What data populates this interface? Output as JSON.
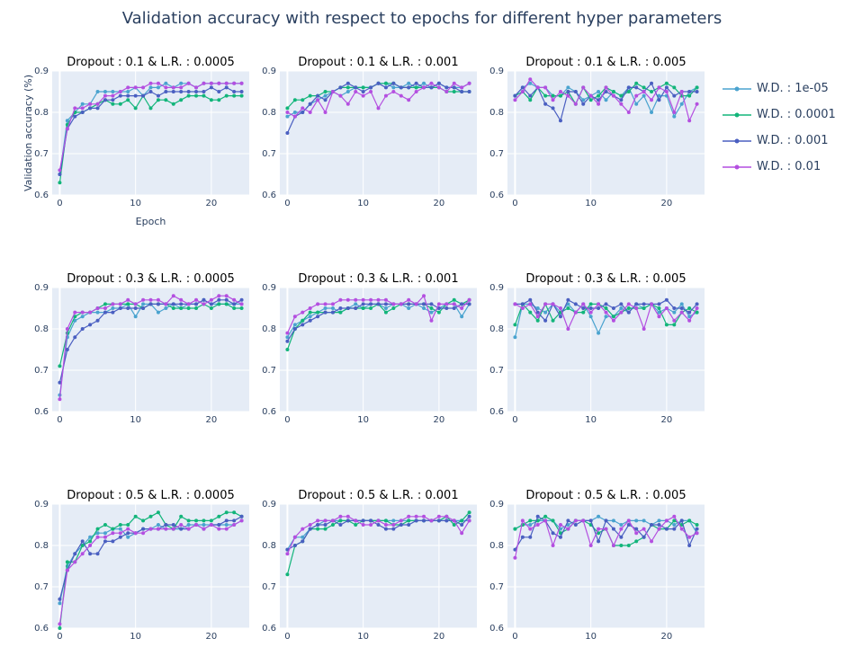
{
  "title": "Validation accuracy with respect to epochs for different hyper parameters",
  "colors": {
    "plot_bg": "#e5ecf6",
    "grid": "#ffffff",
    "text": "#2a3f5f"
  },
  "chart_data": {
    "type": "line",
    "x_axis_label": "Epoch",
    "y_axis_label": "Validation accuracy (%)",
    "xlim": [
      -1,
      25
    ],
    "ylim": [
      0.6,
      0.9
    ],
    "x_ticks": [
      0,
      10,
      20
    ],
    "y_ticks": [
      0.6,
      0.7,
      0.8,
      0.9
    ],
    "x": [
      0,
      1,
      2,
      3,
      4,
      5,
      6,
      7,
      8,
      9,
      10,
      11,
      12,
      13,
      14,
      15,
      16,
      17,
      18,
      19,
      20,
      21,
      22,
      23,
      24
    ],
    "legend": [
      {
        "name": "W.D. : 1e-05",
        "color": "#4aa3cf"
      },
      {
        "name": "W.D. : 0.0001",
        "color": "#12b57a"
      },
      {
        "name": "W.D. : 0.001",
        "color": "#4a5fc1"
      },
      {
        "name": "W.D. : 0.01",
        "color": "#b44fe0"
      }
    ],
    "subplots": [
      {
        "title": "Dropout : 0.1 & L.R. : 0.0005",
        "series": [
          [
            0.65,
            0.78,
            0.8,
            0.82,
            0.82,
            0.85,
            0.85,
            0.85,
            0.85,
            0.85,
            0.86,
            0.84,
            0.86,
            0.86,
            0.87,
            0.86,
            0.87,
            0.87,
            0.86,
            0.87,
            0.87,
            0.87,
            0.87,
            0.87,
            0.87
          ],
          [
            0.63,
            0.77,
            0.8,
            0.8,
            0.81,
            0.82,
            0.83,
            0.82,
            0.82,
            0.83,
            0.81,
            0.84,
            0.81,
            0.83,
            0.83,
            0.82,
            0.83,
            0.84,
            0.84,
            0.84,
            0.83,
            0.83,
            0.84,
            0.84,
            0.84
          ],
          [
            0.65,
            0.76,
            0.79,
            0.8,
            0.81,
            0.81,
            0.83,
            0.83,
            0.84,
            0.84,
            0.84,
            0.84,
            0.85,
            0.84,
            0.85,
            0.85,
            0.85,
            0.85,
            0.85,
            0.85,
            0.86,
            0.85,
            0.86,
            0.85,
            0.85
          ],
          [
            0.66,
            0.76,
            0.81,
            0.81,
            0.82,
            0.82,
            0.84,
            0.84,
            0.85,
            0.86,
            0.86,
            0.86,
            0.87,
            0.87,
            0.86,
            0.86,
            0.86,
            0.87,
            0.86,
            0.87,
            0.87,
            0.87,
            0.87,
            0.87,
            0.87
          ]
        ]
      },
      {
        "title": "Dropout : 0.1 & L.R. : 0.001",
        "series": [
          [
            0.79,
            0.8,
            0.8,
            0.82,
            0.83,
            0.84,
            0.85,
            0.84,
            0.85,
            0.86,
            0.86,
            0.86,
            0.87,
            0.87,
            0.86,
            0.86,
            0.87,
            0.86,
            0.87,
            0.86,
            0.87,
            0.86,
            0.86,
            0.86,
            0.87
          ],
          [
            0.81,
            0.83,
            0.83,
            0.84,
            0.84,
            0.85,
            0.85,
            0.86,
            0.86,
            0.86,
            0.86,
            0.86,
            0.87,
            0.87,
            0.87,
            0.86,
            0.86,
            0.86,
            0.86,
            0.86,
            0.86,
            0.85,
            0.85,
            0.85,
            0.85
          ],
          [
            0.75,
            0.79,
            0.8,
            0.82,
            0.84,
            0.83,
            0.85,
            0.86,
            0.87,
            0.86,
            0.85,
            0.86,
            0.87,
            0.86,
            0.87,
            0.86,
            0.86,
            0.87,
            0.86,
            0.86,
            0.87,
            0.86,
            0.86,
            0.85,
            0.85
          ],
          [
            0.8,
            0.79,
            0.81,
            0.8,
            0.83,
            0.8,
            0.85,
            0.84,
            0.82,
            0.85,
            0.84,
            0.85,
            0.81,
            0.84,
            0.85,
            0.84,
            0.83,
            0.85,
            0.86,
            0.87,
            0.86,
            0.85,
            0.87,
            0.86,
            0.87
          ]
        ]
      },
      {
        "title": "Dropout : 0.1 & L.R. : 0.005",
        "series": [
          [
            0.84,
            0.86,
            0.87,
            0.86,
            0.86,
            0.84,
            0.84,
            0.86,
            0.85,
            0.83,
            0.84,
            0.85,
            0.83,
            0.85,
            0.84,
            0.86,
            0.82,
            0.84,
            0.8,
            0.84,
            0.84,
            0.79,
            0.82,
            0.85,
            0.86
          ],
          [
            0.84,
            0.85,
            0.83,
            0.86,
            0.84,
            0.84,
            0.84,
            0.85,
            0.82,
            0.86,
            0.83,
            0.84,
            0.86,
            0.85,
            0.84,
            0.85,
            0.87,
            0.86,
            0.85,
            0.86,
            0.87,
            0.86,
            0.84,
            0.84,
            0.86
          ],
          [
            0.84,
            0.86,
            0.84,
            0.86,
            0.82,
            0.81,
            0.78,
            0.85,
            0.85,
            0.82,
            0.84,
            0.83,
            0.85,
            0.84,
            0.83,
            0.86,
            0.86,
            0.85,
            0.87,
            0.83,
            0.86,
            0.84,
            0.85,
            0.85,
            0.85
          ],
          [
            0.83,
            0.85,
            0.88,
            0.86,
            0.86,
            0.83,
            0.85,
            0.84,
            0.82,
            0.86,
            0.84,
            0.82,
            0.86,
            0.84,
            0.82,
            0.8,
            0.84,
            0.85,
            0.83,
            0.86,
            0.85,
            0.8,
            0.85,
            0.78,
            0.82
          ]
        ]
      },
      {
        "title": "Dropout : 0.3 & L.R. : 0.0005",
        "series": [
          [
            0.64,
            0.78,
            0.82,
            0.83,
            0.84,
            0.84,
            0.84,
            0.85,
            0.85,
            0.86,
            0.83,
            0.86,
            0.86,
            0.84,
            0.85,
            0.86,
            0.85,
            0.86,
            0.86,
            0.87,
            0.86,
            0.86,
            0.86,
            0.86,
            0.86
          ],
          [
            0.71,
            0.79,
            0.83,
            0.84,
            0.84,
            0.85,
            0.86,
            0.86,
            0.86,
            0.86,
            0.86,
            0.85,
            0.86,
            0.86,
            0.86,
            0.85,
            0.85,
            0.85,
            0.85,
            0.86,
            0.85,
            0.86,
            0.86,
            0.85,
            0.85
          ],
          [
            0.67,
            0.75,
            0.78,
            0.8,
            0.81,
            0.82,
            0.84,
            0.84,
            0.85,
            0.85,
            0.85,
            0.85,
            0.86,
            0.86,
            0.86,
            0.86,
            0.86,
            0.86,
            0.86,
            0.87,
            0.86,
            0.87,
            0.87,
            0.86,
            0.87
          ],
          [
            0.63,
            0.8,
            0.84,
            0.84,
            0.84,
            0.85,
            0.85,
            0.86,
            0.86,
            0.87,
            0.86,
            0.87,
            0.87,
            0.87,
            0.86,
            0.88,
            0.87,
            0.86,
            0.87,
            0.86,
            0.87,
            0.88,
            0.88,
            0.87,
            0.86
          ]
        ]
      },
      {
        "title": "Dropout : 0.3 & L.R. : 0.001",
        "series": [
          [
            0.78,
            0.81,
            0.82,
            0.83,
            0.84,
            0.85,
            0.85,
            0.84,
            0.85,
            0.86,
            0.85,
            0.86,
            0.86,
            0.85,
            0.86,
            0.86,
            0.85,
            0.86,
            0.85,
            0.84,
            0.85,
            0.86,
            0.86,
            0.83,
            0.86
          ],
          [
            0.75,
            0.8,
            0.82,
            0.84,
            0.84,
            0.84,
            0.84,
            0.84,
            0.85,
            0.85,
            0.85,
            0.85,
            0.86,
            0.84,
            0.85,
            0.86,
            0.86,
            0.86,
            0.86,
            0.85,
            0.84,
            0.86,
            0.87,
            0.86,
            0.87
          ],
          [
            0.77,
            0.8,
            0.81,
            0.82,
            0.83,
            0.84,
            0.84,
            0.85,
            0.85,
            0.85,
            0.86,
            0.86,
            0.86,
            0.86,
            0.86,
            0.86,
            0.86,
            0.86,
            0.86,
            0.86,
            0.85,
            0.85,
            0.85,
            0.86,
            0.86
          ],
          [
            0.79,
            0.83,
            0.84,
            0.85,
            0.86,
            0.86,
            0.86,
            0.87,
            0.87,
            0.87,
            0.87,
            0.87,
            0.87,
            0.87,
            0.86,
            0.86,
            0.87,
            0.86,
            0.88,
            0.82,
            0.86,
            0.86,
            0.86,
            0.85,
            0.87
          ]
        ]
      },
      {
        "title": "Dropout : 0.3 & L.R. : 0.005",
        "series": [
          [
            0.78,
            0.86,
            0.86,
            0.85,
            0.84,
            0.86,
            0.84,
            0.86,
            0.84,
            0.86,
            0.83,
            0.79,
            0.83,
            0.83,
            0.85,
            0.84,
            0.86,
            0.85,
            0.86,
            0.84,
            0.85,
            0.84,
            0.86,
            0.83,
            0.84
          ],
          [
            0.81,
            0.86,
            0.84,
            0.82,
            0.86,
            0.82,
            0.84,
            0.85,
            0.84,
            0.84,
            0.86,
            0.86,
            0.85,
            0.83,
            0.84,
            0.85,
            0.85,
            0.85,
            0.86,
            0.85,
            0.81,
            0.81,
            0.84,
            0.85,
            0.84
          ],
          [
            0.86,
            0.86,
            0.87,
            0.84,
            0.82,
            0.86,
            0.83,
            0.87,
            0.86,
            0.85,
            0.85,
            0.85,
            0.86,
            0.85,
            0.86,
            0.84,
            0.86,
            0.86,
            0.86,
            0.86,
            0.87,
            0.85,
            0.85,
            0.84,
            0.86
          ],
          [
            0.86,
            0.85,
            0.86,
            0.83,
            0.86,
            0.86,
            0.85,
            0.8,
            0.84,
            0.86,
            0.84,
            0.86,
            0.84,
            0.82,
            0.84,
            0.86,
            0.85,
            0.8,
            0.86,
            0.83,
            0.85,
            0.82,
            0.84,
            0.82,
            0.85
          ]
        ]
      },
      {
        "title": "Dropout : 0.5 & L.R. : 0.0005",
        "series": [
          [
            0.66,
            0.75,
            0.78,
            0.8,
            0.82,
            0.83,
            0.83,
            0.84,
            0.84,
            0.82,
            0.83,
            0.84,
            0.84,
            0.85,
            0.84,
            0.84,
            0.84,
            0.85,
            0.85,
            0.85,
            0.85,
            0.85,
            0.85,
            0.85,
            0.86
          ],
          [
            0.6,
            0.76,
            0.76,
            0.8,
            0.81,
            0.84,
            0.85,
            0.84,
            0.85,
            0.85,
            0.87,
            0.86,
            0.87,
            0.88,
            0.85,
            0.84,
            0.87,
            0.86,
            0.86,
            0.86,
            0.86,
            0.87,
            0.88,
            0.88,
            0.87
          ],
          [
            0.67,
            0.74,
            0.78,
            0.81,
            0.78,
            0.78,
            0.81,
            0.81,
            0.82,
            0.83,
            0.83,
            0.84,
            0.84,
            0.84,
            0.85,
            0.85,
            0.84,
            0.84,
            0.85,
            0.84,
            0.85,
            0.85,
            0.86,
            0.86,
            0.87
          ],
          [
            0.61,
            0.74,
            0.76,
            0.78,
            0.8,
            0.82,
            0.82,
            0.83,
            0.83,
            0.84,
            0.83,
            0.83,
            0.84,
            0.84,
            0.84,
            0.84,
            0.85,
            0.84,
            0.85,
            0.84,
            0.85,
            0.84,
            0.84,
            0.85,
            0.86
          ]
        ]
      },
      {
        "title": "Dropout : 0.5 & L.R. : 0.001",
        "series": [
          [
            0.79,
            0.82,
            0.82,
            0.84,
            0.85,
            0.86,
            0.86,
            0.86,
            0.86,
            0.86,
            0.86,
            0.86,
            0.86,
            0.86,
            0.86,
            0.86,
            0.86,
            0.86,
            0.86,
            0.86,
            0.86,
            0.86,
            0.86,
            0.86,
            0.86
          ],
          [
            0.73,
            0.8,
            0.81,
            0.84,
            0.84,
            0.84,
            0.85,
            0.86,
            0.86,
            0.85,
            0.86,
            0.86,
            0.86,
            0.86,
            0.85,
            0.85,
            0.86,
            0.86,
            0.86,
            0.86,
            0.86,
            0.87,
            0.85,
            0.86,
            0.88
          ],
          [
            0.79,
            0.8,
            0.81,
            0.84,
            0.85,
            0.85,
            0.86,
            0.85,
            0.86,
            0.86,
            0.86,
            0.86,
            0.85,
            0.84,
            0.84,
            0.85,
            0.85,
            0.86,
            0.86,
            0.86,
            0.86,
            0.86,
            0.86,
            0.85,
            0.87
          ],
          [
            0.78,
            0.82,
            0.84,
            0.85,
            0.86,
            0.86,
            0.86,
            0.87,
            0.87,
            0.86,
            0.85,
            0.85,
            0.86,
            0.85,
            0.85,
            0.86,
            0.87,
            0.87,
            0.87,
            0.86,
            0.87,
            0.87,
            0.86,
            0.83,
            0.86
          ]
        ]
      },
      {
        "title": "Dropout : 0.5 & L.R. : 0.005",
        "series": [
          [
            0.84,
            0.85,
            0.85,
            0.86,
            0.86,
            0.86,
            0.84,
            0.85,
            0.86,
            0.86,
            0.86,
            0.87,
            0.86,
            0.86,
            0.85,
            0.86,
            0.86,
            0.86,
            0.85,
            0.86,
            0.86,
            0.85,
            0.86,
            0.86,
            0.83
          ],
          [
            0.84,
            0.85,
            0.86,
            0.86,
            0.87,
            0.86,
            0.83,
            0.84,
            0.86,
            0.86,
            0.85,
            0.83,
            0.84,
            0.8,
            0.8,
            0.8,
            0.81,
            0.82,
            0.85,
            0.84,
            0.84,
            0.86,
            0.85,
            0.86,
            0.85
          ],
          [
            0.79,
            0.82,
            0.82,
            0.87,
            0.86,
            0.83,
            0.82,
            0.86,
            0.85,
            0.86,
            0.86,
            0.81,
            0.86,
            0.84,
            0.82,
            0.85,
            0.84,
            0.82,
            0.85,
            0.85,
            0.84,
            0.84,
            0.86,
            0.8,
            0.84
          ],
          [
            0.77,
            0.86,
            0.84,
            0.85,
            0.86,
            0.8,
            0.85,
            0.84,
            0.86,
            0.86,
            0.8,
            0.84,
            0.84,
            0.8,
            0.84,
            0.86,
            0.83,
            0.84,
            0.81,
            0.84,
            0.86,
            0.87,
            0.84,
            0.82,
            0.83
          ]
        ]
      }
    ]
  }
}
